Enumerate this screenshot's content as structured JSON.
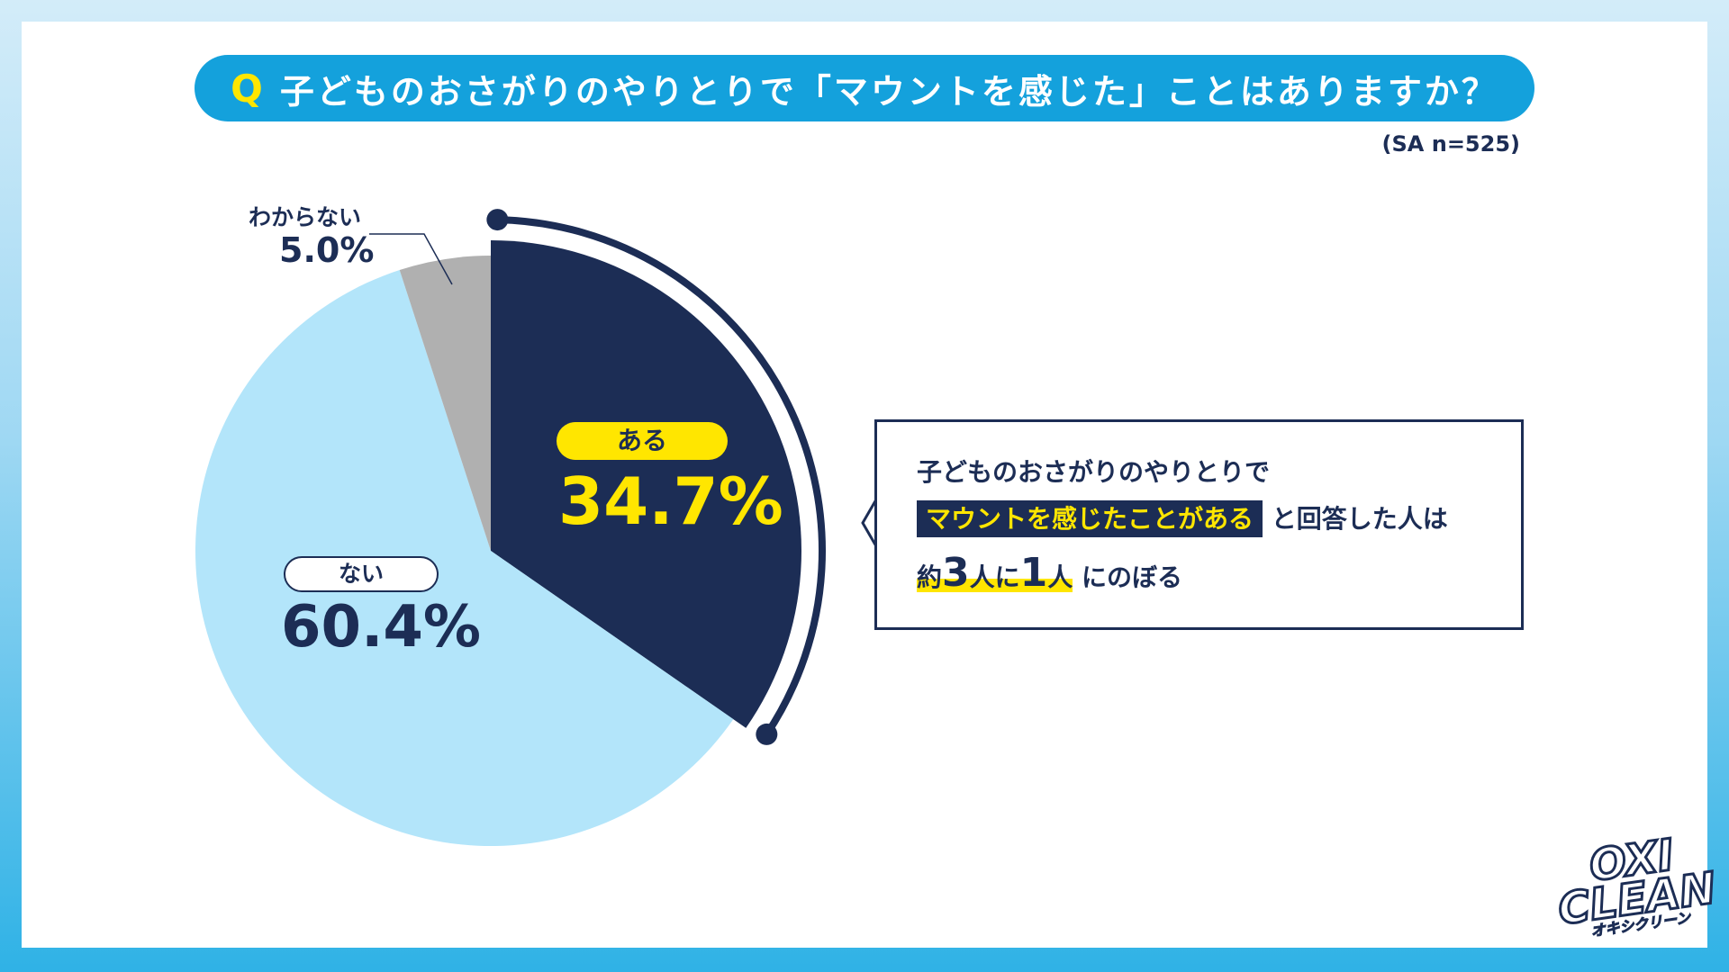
{
  "header": {
    "q_mark": "Q",
    "title": "子どものおさがりのやりとりで「マウントを感じた」ことはありますか？",
    "sample_note": "(SA n=525)"
  },
  "chart_data": {
    "type": "pie",
    "title": "子どものおさがりのやりとりで「マウントを感じた」ことはありますか？",
    "categories": [
      "ある",
      "ない",
      "わからない"
    ],
    "values": [
      34.7,
      60.4,
      5.0
    ],
    "labels": [
      "34.7%",
      "60.4%",
      "5.0%"
    ],
    "colors": [
      "#1c2d55",
      "#b3e5fa",
      "#b0b0b0"
    ],
    "unit": "%",
    "highlighted": "ある"
  },
  "callout": {
    "line1": "子どものおさがりのやりとりで",
    "highlight": "マウントを感じたことがある",
    "line2_rest": "と回答した人は",
    "prefix": "約",
    "n1": "3",
    "mid": "人に",
    "n2": "1",
    "suffix": "人",
    "tail": "にのぼる"
  },
  "logo": {
    "line1": "OXI",
    "line2": "CLEAN",
    "kana": "オキシクリーン"
  },
  "colors": {
    "navy": "#1c2d55",
    "accent_blue": "#14a1dc",
    "yellow": "#ffe600"
  }
}
